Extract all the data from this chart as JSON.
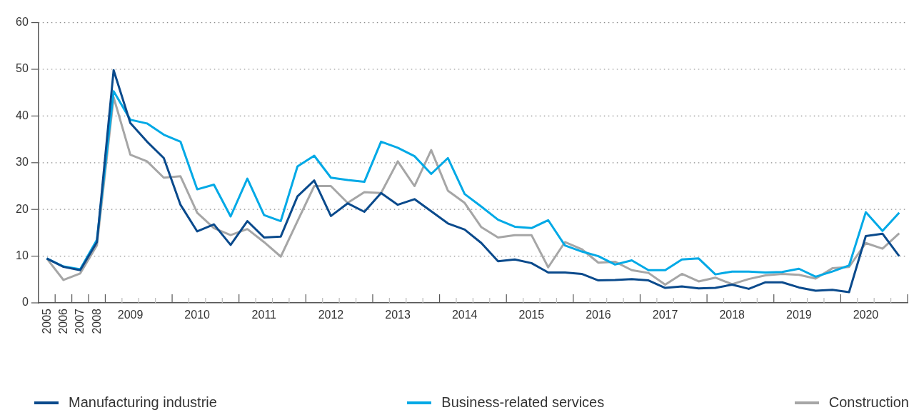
{
  "chart_data": {
    "type": "line",
    "categories": [
      "2005",
      "2006",
      "2007",
      "2008",
      null,
      "2009",
      null,
      null,
      null,
      "2010",
      null,
      null,
      null,
      "2011",
      null,
      null,
      null,
      "2012",
      null,
      null,
      null,
      "2013",
      null,
      null,
      null,
      "2014",
      null,
      null,
      null,
      "2015",
      null,
      null,
      null,
      "2016",
      null,
      null,
      null,
      "2017",
      null,
      null,
      null,
      "2018",
      null,
      null,
      null,
      "2019",
      null,
      null,
      null,
      "2020",
      null,
      null
    ],
    "series": [
      {
        "name": "Manufacturing industrie",
        "color": "#0a4a8c",
        "values": [
          9.5,
          7.7,
          7.0,
          13,
          49.8,
          38.5,
          34.5,
          31,
          21,
          15.3,
          16.8,
          12.4,
          17.5,
          14,
          14.2,
          22.8,
          26.2,
          18.6,
          21.3,
          19.5,
          23.5,
          21,
          22.2,
          19.6,
          17,
          15.7,
          12.8,
          8.9,
          9.3,
          8.5,
          6.5,
          6.5,
          6.2,
          4.8,
          4.9,
          5.1,
          4.8,
          3.2,
          3.5,
          3.1,
          3.2,
          3.9,
          3.0,
          4.4,
          4.4,
          3.3,
          2.6,
          2.8,
          2.3,
          14.3,
          14.8,
          10.0
        ]
      },
      {
        "name": "Business-related services",
        "color": "#00a9e6",
        "values": [
          9.5,
          7.8,
          7.2,
          13.5,
          45.3,
          39.2,
          38.4,
          36,
          34.5,
          24.3,
          25.3,
          18.5,
          26.6,
          18.8,
          17.5,
          29.2,
          31.5,
          26.8,
          26.3,
          25.9,
          34.5,
          33.2,
          31.4,
          27.6,
          31,
          23.3,
          20.6,
          17.8,
          16.3,
          16.0,
          17.7,
          12.3,
          11,
          10,
          8.2,
          9.1,
          7.0,
          7.0,
          9.3,
          9.5,
          6.1,
          6.7,
          6.7,
          6.5,
          6.6,
          7.3,
          5.6,
          6.7,
          8.0,
          19.4,
          15.4,
          19.3
        ]
      },
      {
        "name": "Construction",
        "color": "#a6a6a6",
        "values": [
          9.5,
          4.9,
          6.3,
          12.3,
          44,
          31.7,
          30.3,
          26.8,
          27.1,
          19.3,
          16,
          14.5,
          15.8,
          13,
          9.9,
          17.5,
          25,
          25,
          21.4,
          23.7,
          23.5,
          30.3,
          25,
          32.7,
          24,
          21.4,
          16.2,
          14,
          14.5,
          14.5,
          7.6,
          13,
          11.5,
          8.6,
          8.8,
          7,
          6.4,
          3.9,
          6.2,
          4.6,
          5.4,
          4,
          5.1,
          5.9,
          6.2,
          6,
          5.2,
          7.4,
          7.7,
          12.8,
          11.6,
          14.9
        ]
      }
    ],
    "ylim": [
      0,
      60
    ],
    "yticks": [
      0,
      10,
      20,
      30,
      40,
      50,
      60
    ],
    "grid": "y",
    "legend": "bottom",
    "marker": "none",
    "line_style": "solid"
  }
}
